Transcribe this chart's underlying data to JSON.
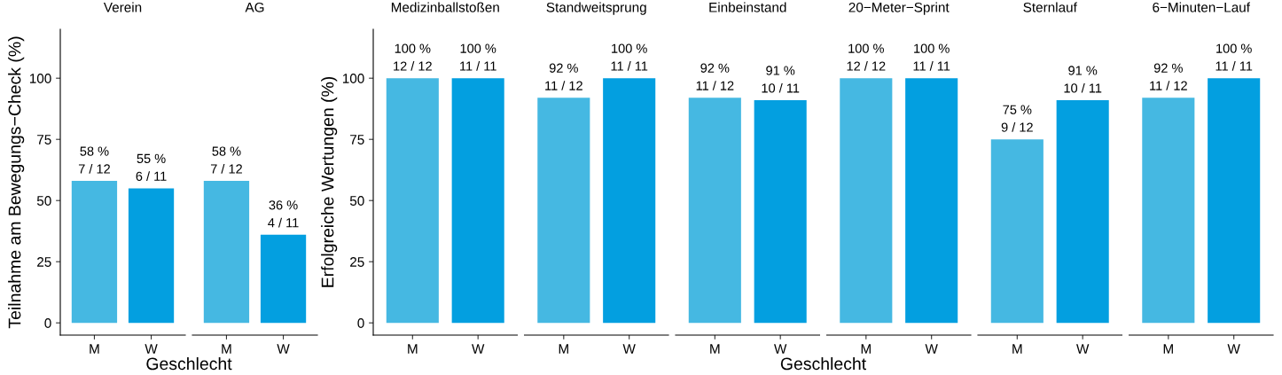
{
  "chart_data": [
    {
      "type": "bar",
      "title": "Verein",
      "ylabel": "Teilnahme am Bewegungs−Check (%)",
      "xlabel": "Geschlecht",
      "categories": [
        "M",
        "W"
      ],
      "values": [
        58,
        55
      ],
      "colors": [
        "#45b8e2",
        "#039fe0"
      ],
      "value_labels": [
        "58 %\n7 / 12",
        "55 %\n6 / 11"
      ],
      "ylim": [
        -5,
        120
      ],
      "yticks": [
        0,
        25,
        50,
        75,
        100
      ],
      "grid": false,
      "legend": false
    },
    {
      "type": "bar",
      "title": "AG",
      "categories": [
        "M",
        "W"
      ],
      "values": [
        58,
        36
      ],
      "colors": [
        "#45b8e2",
        "#039fe0"
      ],
      "value_labels": [
        "58 %\n7 / 12",
        "36 %\n4 / 11"
      ],
      "tick_labels": "x",
      "grid": false,
      "legend": false
    },
    {
      "type": "bar",
      "title": "Medizinballstoßen",
      "ylabel": "Erfolgreiche Wertungen (%)",
      "categories": [
        "M",
        "W"
      ],
      "values": [
        100,
        100
      ],
      "colors": [
        "#45b8e2",
        "#039fe0"
      ],
      "value_labels": [
        "100 %\n12 / 12",
        "100 %\n11 / 11"
      ],
      "ylim": [
        -5,
        120
      ],
      "yticks": [
        0,
        25,
        50,
        75,
        100
      ],
      "grid": false,
      "legend": false
    },
    {
      "type": "bar",
      "title": "Standweitsprung",
      "categories": [
        "M",
        "W"
      ],
      "values": [
        92,
        100
      ],
      "colors": [
        "#45b8e2",
        "#039fe0"
      ],
      "value_labels": [
        "92 %\n11 / 12",
        "100 %\n11 / 11"
      ],
      "tick_labels": "x",
      "grid": false,
      "legend": false
    },
    {
      "type": "bar",
      "title": "Einbeinstand",
      "xlabel": "Geschlecht",
      "categories": [
        "M",
        "W"
      ],
      "values": [
        92,
        91
      ],
      "colors": [
        "#45b8e2",
        "#039fe0"
      ],
      "value_labels": [
        "92 %\n11 / 12",
        "91 %\n10 / 11"
      ],
      "tick_labels": "x",
      "grid": false,
      "legend": false
    },
    {
      "type": "bar",
      "title": "20−Meter−Sprint",
      "categories": [
        "M",
        "W"
      ],
      "values": [
        100,
        100
      ],
      "colors": [
        "#45b8e2",
        "#039fe0"
      ],
      "value_labels": [
        "100 %\n12 / 12",
        "100 %\n11 / 11"
      ],
      "tick_labels": "x",
      "grid": false,
      "legend": false
    },
    {
      "type": "bar",
      "title": "Sternlauf",
      "categories": [
        "M",
        "W"
      ],
      "values": [
        75,
        91
      ],
      "colors": [
        "#45b8e2",
        "#039fe0"
      ],
      "value_labels": [
        "75 %\n9 / 12",
        "91 %\n10 / 11"
      ],
      "tick_labels": "x",
      "grid": false,
      "legend": false
    },
    {
      "type": "bar",
      "title": "6−Minuten−Lauf",
      "categories": [
        "M",
        "W"
      ],
      "values": [
        92,
        100
      ],
      "colors": [
        "#45b8e2",
        "#039fe0"
      ],
      "value_labels": [
        "92 %\n11 / 12",
        "100 %\n11 / 11"
      ],
      "tick_labels": "x",
      "grid": false,
      "legend": false
    }
  ]
}
